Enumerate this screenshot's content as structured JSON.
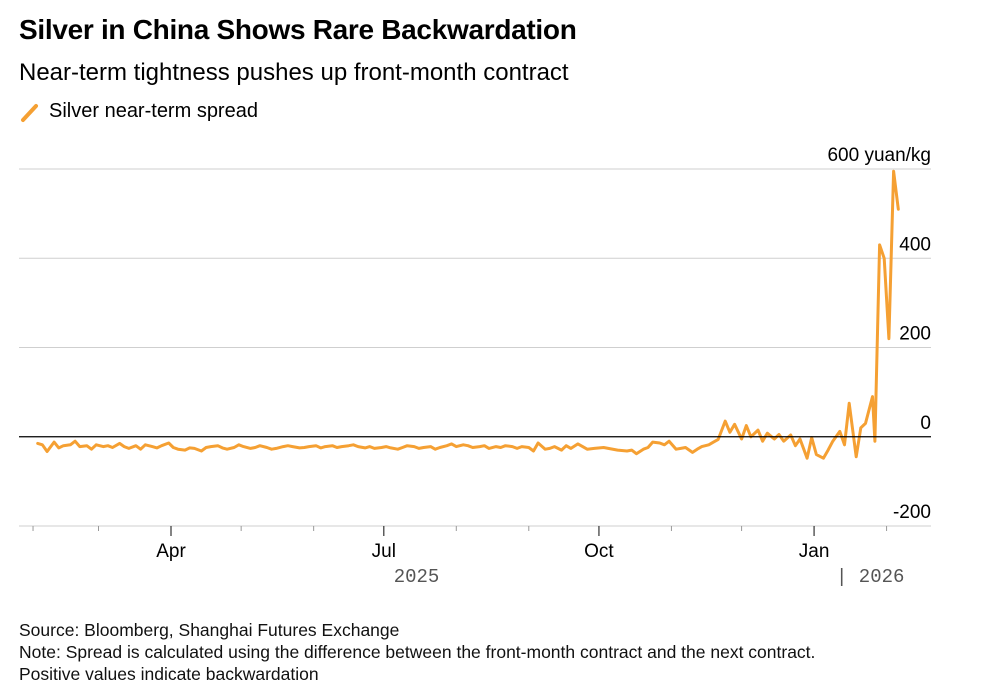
{
  "title": "Silver in China Shows Rare Backwardation",
  "subtitle": "Near-term tightness pushes up front-month contract",
  "legend": {
    "label": "Silver near-term spread",
    "color": "#f5a033"
  },
  "footer": {
    "source": "Source: Bloomberg, Shanghai Futures Exchange",
    "note": "Note: Spread is calculated using the difference between the front-month contract and the next contract.",
    "note2": "Positive values indicate backwardation"
  },
  "chart_data": {
    "type": "line",
    "title": "Silver in China Shows Rare Backwardation",
    "series": [
      {
        "name": "Silver near-term spread",
        "color": "#f5a033",
        "points": [
          [
            "2025-02-03",
            -15
          ],
          [
            "2025-02-05",
            -18
          ],
          [
            "2025-02-07",
            -33
          ],
          [
            "2025-02-10",
            -12
          ],
          [
            "2025-02-12",
            -25
          ],
          [
            "2025-02-14",
            -20
          ],
          [
            "2025-02-17",
            -18
          ],
          [
            "2025-02-19",
            -10
          ],
          [
            "2025-02-21",
            -22
          ],
          [
            "2025-02-24",
            -20
          ],
          [
            "2025-02-26",
            -28
          ],
          [
            "2025-02-28",
            -18
          ],
          [
            "2025-03-03",
            -22
          ],
          [
            "2025-03-05",
            -20
          ],
          [
            "2025-03-07",
            -24
          ],
          [
            "2025-03-10",
            -15
          ],
          [
            "2025-03-12",
            -22
          ],
          [
            "2025-03-14",
            -26
          ],
          [
            "2025-03-17",
            -20
          ],
          [
            "2025-03-19",
            -28
          ],
          [
            "2025-03-21",
            -18
          ],
          [
            "2025-03-24",
            -22
          ],
          [
            "2025-03-26",
            -25
          ],
          [
            "2025-03-28",
            -20
          ],
          [
            "2025-03-31",
            -14
          ],
          [
            "2025-04-02",
            -24
          ],
          [
            "2025-04-04",
            -28
          ],
          [
            "2025-04-07",
            -30
          ],
          [
            "2025-04-09",
            -25
          ],
          [
            "2025-04-11",
            -26
          ],
          [
            "2025-04-14",
            -32
          ],
          [
            "2025-04-16",
            -24
          ],
          [
            "2025-04-18",
            -22
          ],
          [
            "2025-04-21",
            -20
          ],
          [
            "2025-04-23",
            -25
          ],
          [
            "2025-04-25",
            -28
          ],
          [
            "2025-04-28",
            -24
          ],
          [
            "2025-04-30",
            -18
          ],
          [
            "2025-05-02",
            -22
          ],
          [
            "2025-05-05",
            -26
          ],
          [
            "2025-05-07",
            -24
          ],
          [
            "2025-05-09",
            -20
          ],
          [
            "2025-05-12",
            -24
          ],
          [
            "2025-05-14",
            -28
          ],
          [
            "2025-05-16",
            -26
          ],
          [
            "2025-05-19",
            -22
          ],
          [
            "2025-05-21",
            -20
          ],
          [
            "2025-05-23",
            -22
          ],
          [
            "2025-05-26",
            -25
          ],
          [
            "2025-05-28",
            -24
          ],
          [
            "2025-05-30",
            -22
          ],
          [
            "2025-06-02",
            -20
          ],
          [
            "2025-06-04",
            -25
          ],
          [
            "2025-06-06",
            -22
          ],
          [
            "2025-06-09",
            -20
          ],
          [
            "2025-06-11",
            -24
          ],
          [
            "2025-06-13",
            -22
          ],
          [
            "2025-06-16",
            -20
          ],
          [
            "2025-06-18",
            -18
          ],
          [
            "2025-06-20",
            -22
          ],
          [
            "2025-06-23",
            -25
          ],
          [
            "2025-06-25",
            -22
          ],
          [
            "2025-06-27",
            -26
          ],
          [
            "2025-06-30",
            -24
          ],
          [
            "2025-07-02",
            -22
          ],
          [
            "2025-07-04",
            -25
          ],
          [
            "2025-07-07",
            -28
          ],
          [
            "2025-07-09",
            -24
          ],
          [
            "2025-07-11",
            -20
          ],
          [
            "2025-07-14",
            -22
          ],
          [
            "2025-07-16",
            -26
          ],
          [
            "2025-07-18",
            -24
          ],
          [
            "2025-07-21",
            -22
          ],
          [
            "2025-07-23",
            -28
          ],
          [
            "2025-07-25",
            -24
          ],
          [
            "2025-07-28",
            -20
          ],
          [
            "2025-07-30",
            -16
          ],
          [
            "2025-08-01",
            -22
          ],
          [
            "2025-08-04",
            -18
          ],
          [
            "2025-08-06",
            -20
          ],
          [
            "2025-08-08",
            -24
          ],
          [
            "2025-08-11",
            -22
          ],
          [
            "2025-08-13",
            -20
          ],
          [
            "2025-08-15",
            -26
          ],
          [
            "2025-08-18",
            -22
          ],
          [
            "2025-08-20",
            -24
          ],
          [
            "2025-08-22",
            -20
          ],
          [
            "2025-08-25",
            -22
          ],
          [
            "2025-08-27",
            -26
          ],
          [
            "2025-08-29",
            -22
          ],
          [
            "2025-09-01",
            -24
          ],
          [
            "2025-09-03",
            -32
          ],
          [
            "2025-09-05",
            -14
          ],
          [
            "2025-09-08",
            -28
          ],
          [
            "2025-09-10",
            -26
          ],
          [
            "2025-09-12",
            -22
          ],
          [
            "2025-09-15",
            -30
          ],
          [
            "2025-09-17",
            -20
          ],
          [
            "2025-09-19",
            -26
          ],
          [
            "2025-09-22",
            -16
          ],
          [
            "2025-09-24",
            -22
          ],
          [
            "2025-09-26",
            -28
          ],
          [
            "2025-09-29",
            -26
          ],
          [
            "2025-10-03",
            -24
          ],
          [
            "2025-10-09",
            -30
          ],
          [
            "2025-10-13",
            -32
          ],
          [
            "2025-10-15",
            -30
          ],
          [
            "2025-10-17",
            -38
          ],
          [
            "2025-10-20",
            -28
          ],
          [
            "2025-10-22",
            -24
          ],
          [
            "2025-10-24",
            -12
          ],
          [
            "2025-10-27",
            -14
          ],
          [
            "2025-10-29",
            -18
          ],
          [
            "2025-10-31",
            -10
          ],
          [
            "2025-11-03",
            -28
          ],
          [
            "2025-11-05",
            -26
          ],
          [
            "2025-11-07",
            -24
          ],
          [
            "2025-11-10",
            -35
          ],
          [
            "2025-11-12",
            -28
          ],
          [
            "2025-11-14",
            -22
          ],
          [
            "2025-11-17",
            -18
          ],
          [
            "2025-11-19",
            -12
          ],
          [
            "2025-11-21",
            -6
          ],
          [
            "2025-11-24",
            35
          ],
          [
            "2025-11-26",
            10
          ],
          [
            "2025-11-28",
            28
          ],
          [
            "2025-12-01",
            -5
          ],
          [
            "2025-12-03",
            25
          ],
          [
            "2025-12-05",
            0
          ],
          [
            "2025-12-08",
            15
          ],
          [
            "2025-12-10",
            -10
          ],
          [
            "2025-12-12",
            8
          ],
          [
            "2025-12-15",
            -5
          ],
          [
            "2025-12-17",
            5
          ],
          [
            "2025-12-19",
            -10
          ],
          [
            "2025-12-22",
            4
          ],
          [
            "2025-12-24",
            -20
          ],
          [
            "2025-12-26",
            -5
          ],
          [
            "2025-12-29",
            -48
          ],
          [
            "2025-12-31",
            -2
          ],
          [
            "2026-01-02",
            -40
          ],
          [
            "2026-01-05",
            -48
          ],
          [
            "2026-01-07",
            -30
          ],
          [
            "2026-01-09",
            -10
          ],
          [
            "2026-01-12",
            12
          ],
          [
            "2026-01-14",
            -18
          ],
          [
            "2026-01-16",
            75
          ],
          [
            "2026-01-19",
            -45
          ],
          [
            "2026-01-21",
            20
          ],
          [
            "2026-01-23",
            30
          ],
          [
            "2026-01-26",
            90
          ],
          [
            "2026-01-27",
            -10
          ],
          [
            "2026-01-29",
            430
          ],
          [
            "2026-01-31",
            400
          ],
          [
            "2026-02-02",
            220
          ],
          [
            "2026-02-04",
            595
          ],
          [
            "2026-02-06",
            510
          ]
        ]
      }
    ],
    "ylim": [
      -200,
      600
    ],
    "yticks": [
      {
        "value": 600,
        "label": "600 yuan/kg"
      },
      {
        "value": 400,
        "label": "400"
      },
      {
        "value": 200,
        "label": "200"
      },
      {
        "value": 0,
        "label": "0"
      },
      {
        "value": -200,
        "label": "-200"
      }
    ],
    "xlim": [
      "2025-01-26",
      "2026-02-20"
    ],
    "xticks": [
      {
        "date": "2025-04-01",
        "label": "Apr"
      },
      {
        "date": "2025-07-01",
        "label": "Jul"
      },
      {
        "date": "2025-10-01",
        "label": "Oct"
      },
      {
        "date": "2026-01-01",
        "label": "Jan"
      }
    ],
    "minor_ticks": [
      "2025-02-01",
      "2025-03-01",
      "2025-05-01",
      "2025-06-01",
      "2025-08-01",
      "2025-09-01",
      "2025-11-01",
      "2025-12-01",
      "2026-02-01"
    ],
    "year_labels": [
      {
        "date": "2025-07-15",
        "label": "2025"
      },
      {
        "date": "2026-01-25",
        "label": "| 2026"
      }
    ],
    "grid": true,
    "zero_line": true
  }
}
